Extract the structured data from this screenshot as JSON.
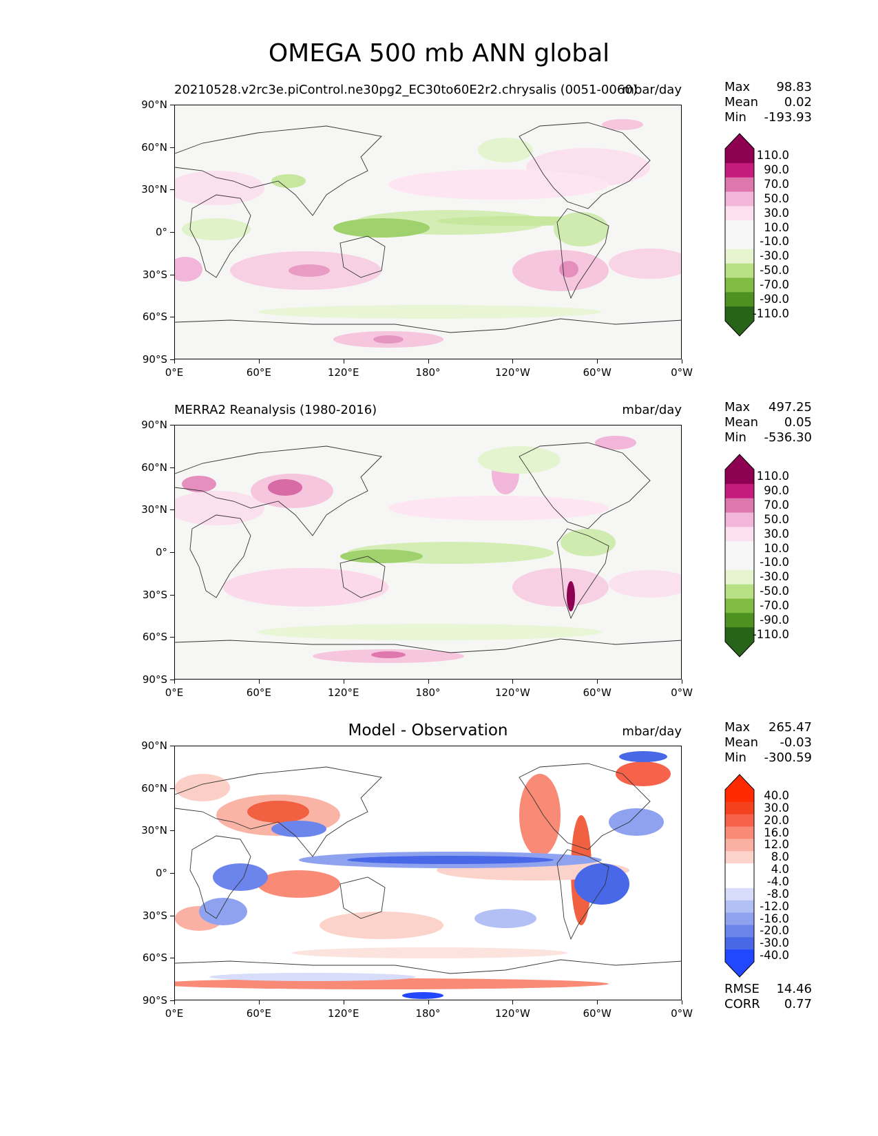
{
  "figure_title": "OMEGA 500 mb ANN global",
  "axes": {
    "lat_ticks": [
      "90°N",
      "60°N",
      "30°N",
      "0°",
      "30°S",
      "60°S",
      "90°S"
    ],
    "lon_ticks": [
      "0°E",
      "60°E",
      "120°E",
      "180°",
      "120°W",
      "60°W",
      "0°W"
    ]
  },
  "panels": [
    {
      "title": "20210528.v2rc3e.piControl.ne30pg2_EC30to60E2r2.chrysalis (0051-0060)",
      "units": "mbar/day",
      "stats": {
        "max_label": "Max",
        "max": "98.83",
        "mean_label": "Mean",
        "mean": "0.02",
        "min_label": "Min",
        "min": "-193.93"
      },
      "colorbar": {
        "labels": [
          "110.0",
          "90.0",
          "70.0",
          "50.0",
          "30.0",
          "10.0",
          "-10.0",
          "-30.0",
          "-50.0",
          "-70.0",
          "-90.0",
          "-110.0"
        ],
        "colors": [
          "#8e0152",
          "#c51b7d",
          "#de77ae",
          "#f1b6da",
          "#fde0ef",
          "#f7f7f7",
          "#f7f7f7",
          "#e6f5d0",
          "#b8e186",
          "#7fbc41",
          "#4d9221",
          "#276419"
        ]
      }
    },
    {
      "title": "MERRA2 Reanalysis (1980-2016)",
      "units": "mbar/day",
      "stats": {
        "max_label": "Max",
        "max": "497.25",
        "mean_label": "Mean",
        "mean": "0.05",
        "min_label": "Min",
        "min": "-536.30"
      },
      "colorbar": {
        "labels": [
          "110.0",
          "90.0",
          "70.0",
          "50.0",
          "30.0",
          "10.0",
          "-10.0",
          "-30.0",
          "-50.0",
          "-70.0",
          "-90.0",
          "-110.0"
        ],
        "colors": [
          "#8e0152",
          "#c51b7d",
          "#de77ae",
          "#f1b6da",
          "#fde0ef",
          "#f7f7f7",
          "#f7f7f7",
          "#e6f5d0",
          "#b8e186",
          "#7fbc41",
          "#4d9221",
          "#276419"
        ]
      }
    },
    {
      "title": "Model - Observation",
      "units": "mbar/day",
      "stats": {
        "max_label": "Max",
        "max": "265.47",
        "mean_label": "Mean",
        "mean": "-0.03",
        "min_label": "Min",
        "min": "-300.59",
        "rmse_label": "RMSE",
        "rmse": "14.46",
        "corr_label": "CORR",
        "corr": "0.77"
      },
      "colorbar": {
        "labels": [
          "40.0",
          "30.0",
          "20.0",
          "16.0",
          "12.0",
          "8.0",
          "4.0",
          "-4.0",
          "-8.0",
          "-12.0",
          "-16.0",
          "-20.0",
          "-30.0",
          "-40.0"
        ],
        "colors": [
          "#ff2a00",
          "#f5421e",
          "#f6624a",
          "#f88a76",
          "#fab0a2",
          "#fcd3cb",
          "#ffffff",
          "#ffffff",
          "#d6dcfa",
          "#b3c0f5",
          "#8ea2f0",
          "#6c85ec",
          "#4868e8",
          "#2147ff"
        ]
      }
    }
  ]
}
